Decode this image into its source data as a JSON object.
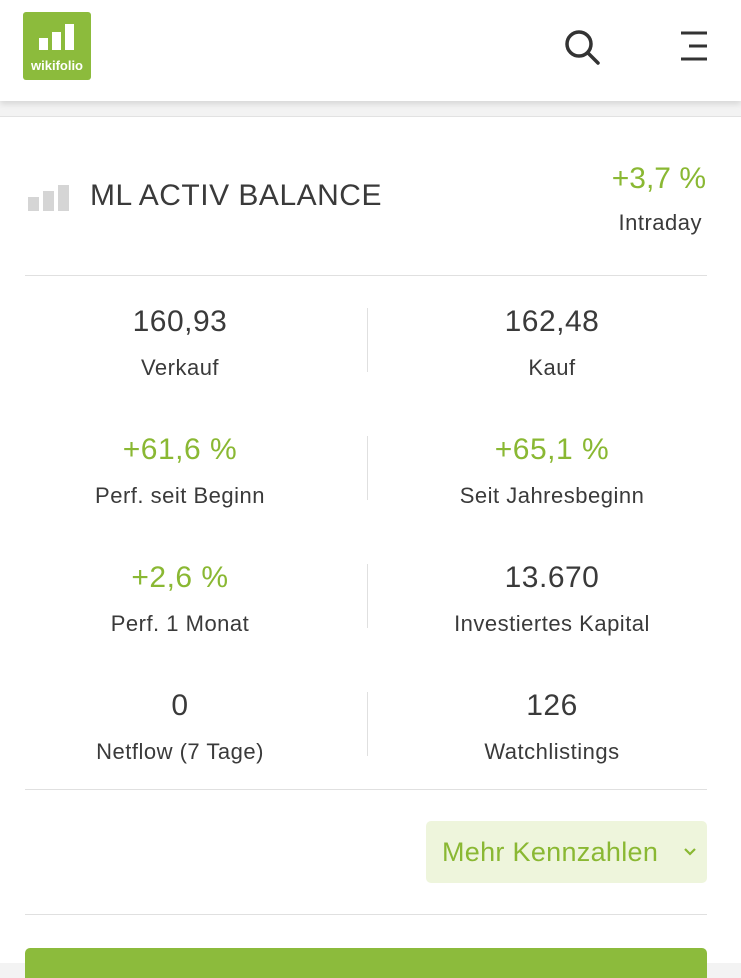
{
  "header": {
    "logo_text": "wikifolio"
  },
  "title": "ML ACTIV BALANCE",
  "change": {
    "value": "+3,7 %",
    "label": "Intraday"
  },
  "metrics": [
    {
      "value": "160,93",
      "label": "Verkauf"
    },
    {
      "value": "162,48",
      "label": "Kauf"
    },
    {
      "value": "+61,6 %",
      "label": "Perf. seit Beginn"
    },
    {
      "value": "+65,1 %",
      "label": "Seit Jahresbeginn"
    },
    {
      "value": "+2,6 %",
      "label": "Perf. 1 Monat"
    },
    {
      "value": "13.670",
      "label": "Investiertes Kapital"
    },
    {
      "value": "0",
      "label": "Netflow (7 Tage)"
    },
    {
      "value": "126",
      "label": "Watchlistings"
    }
  ],
  "button": "Mehr Kennzahlen"
}
